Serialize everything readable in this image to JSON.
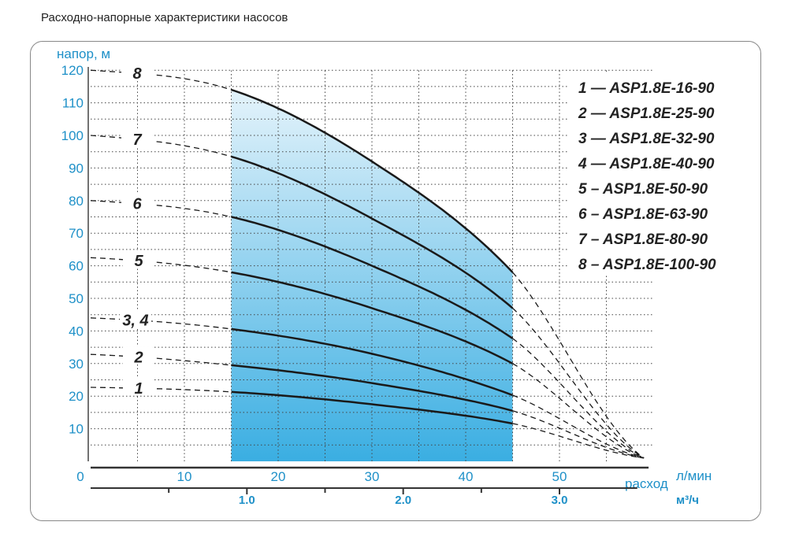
{
  "title": "Расходно-напорные характеристики насосов",
  "chart_data": {
    "type": "line",
    "ylabel": "напор, м",
    "xlabel": "расход",
    "x_unit": "л/мин",
    "x2_unit": "м³/ч",
    "xlim": [
      0,
      60
    ],
    "ylim": [
      0,
      120
    ],
    "x_ticks": [
      0,
      10,
      20,
      30,
      40,
      50
    ],
    "y_ticks": [
      10,
      20,
      30,
      40,
      50,
      60,
      70,
      80,
      90,
      100,
      110,
      120
    ],
    "x2_ticks": [
      "1.0",
      "2.0",
      "3.0"
    ],
    "grid": true,
    "working_range": [
      15,
      45
    ],
    "legend_position": "top-right",
    "colors": {
      "axis_text": "#1e90c8",
      "shade_top": "#e4f3fb",
      "shade_bottom": "#3aaee2",
      "curve": "#1a1a1a"
    },
    "series": [
      {
        "label": "1",
        "legend": "1 — ASP1.8E-16-90",
        "x": [
          0,
          15,
          30,
          45,
          59
        ],
        "y": [
          22.7,
          21.3,
          17.5,
          11.6,
          1
        ]
      },
      {
        "label": "2",
        "legend": "2 — ASP1.8E-25-90",
        "x": [
          0,
          15,
          30,
          45,
          59
        ],
        "y": [
          32.8,
          29.5,
          24,
          15.5,
          1
        ]
      },
      {
        "label": "3, 4",
        "legend": "3 — ASP1.8E-32-90",
        "x": [
          0,
          15,
          30,
          45,
          59
        ],
        "y": [
          44,
          40.6,
          33,
          20.3,
          1
        ]
      },
      {
        "label": "",
        "legend": "4 — ASP1.8E-40-90",
        "x": [],
        "y": []
      },
      {
        "label": "5",
        "legend": "5 – ASP1.8E-50-90",
        "x": [
          0,
          15,
          30,
          45,
          59
        ],
        "y": [
          62.5,
          58,
          47,
          30,
          1
        ]
      },
      {
        "label": "6",
        "legend": "6 – ASP1.8E-63-90",
        "x": [
          0,
          15,
          30,
          45,
          59
        ],
        "y": [
          80,
          75,
          60,
          37.7,
          1
        ]
      },
      {
        "label": "7",
        "legend": "7 – ASP1.8E-80-90",
        "x": [
          0,
          15,
          30,
          45,
          59
        ],
        "y": [
          100,
          93.5,
          74.5,
          47,
          1
        ]
      },
      {
        "label": "8",
        "legend": "8 – ASP1.8E-100-90",
        "x": [
          0,
          15,
          30,
          45,
          59
        ],
        "y": [
          120,
          114,
          92,
          58,
          1
        ]
      }
    ]
  }
}
